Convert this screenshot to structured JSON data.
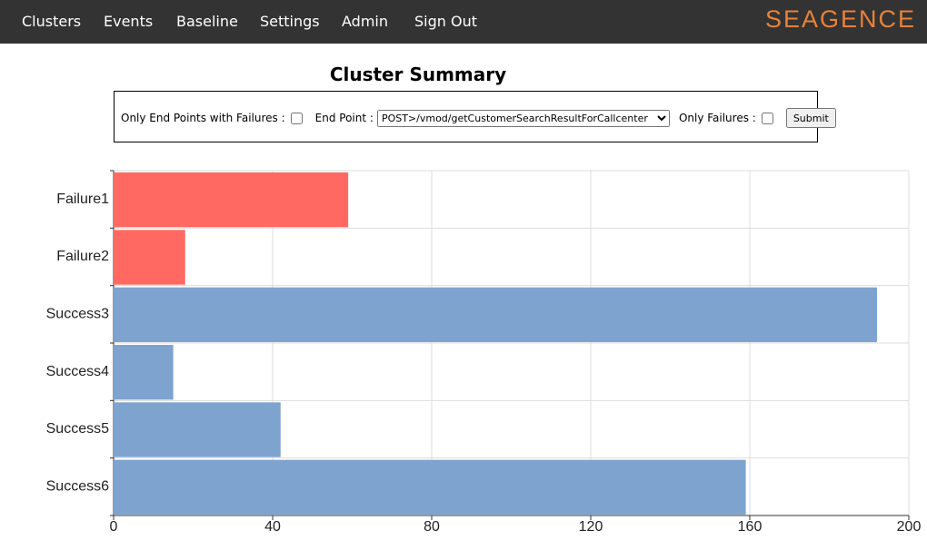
{
  "nav": {
    "items": [
      "Clusters",
      "Events",
      "Baseline",
      "Settings",
      "Admin",
      "Sign Out"
    ],
    "logo": "SEAGENCE"
  },
  "filter": {
    "failures_label": "Only End Points with Failures :",
    "endpoint_label": "End Point :",
    "endpoint_value": "POST>/vmod/getCustomerSearchResultForCallcenter",
    "only_failures_label": "Only Failures :",
    "submit": "Submit"
  },
  "chart_data": {
    "type": "bar",
    "orientation": "horizontal",
    "title": "Cluster Summary",
    "categories": [
      "Failure1",
      "Failure2",
      "Success3",
      "Success4",
      "Success5",
      "Success6"
    ],
    "values": [
      59,
      18,
      192,
      15,
      42,
      159
    ],
    "colors": [
      "#ff6961",
      "#ff6961",
      "#7ea3cf",
      "#7ea3cf",
      "#7ea3cf",
      "#7ea3cf"
    ],
    "xlim": [
      0,
      200
    ],
    "xticks": [
      0,
      40,
      80,
      120,
      160,
      200
    ],
    "grid": true
  }
}
